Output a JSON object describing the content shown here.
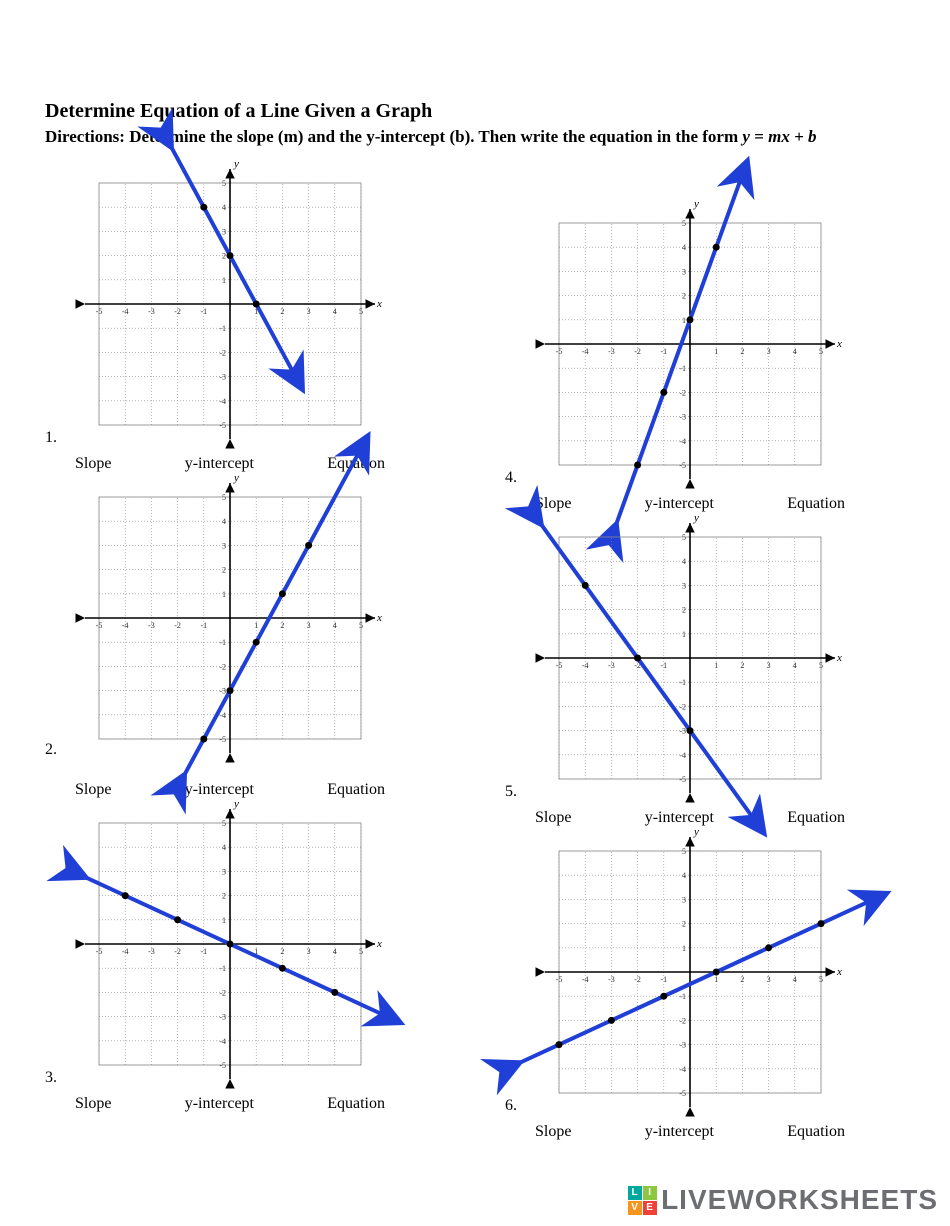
{
  "title": "Determine Equation of a Line Given a Graph",
  "directions_prefix": "Directions: Determine the slope (m) and the y-intercept (b). Then write the equation in the form ",
  "directions_eq": "y = mx + b",
  "label_slope": "Slope",
  "label_yint": "y-intercept",
  "label_eq": "Equation",
  "watermark": "LIVEWORKSHEETS",
  "grid": {
    "xlim": [
      -5,
      5
    ],
    "ylim": [
      -5,
      5
    ],
    "tick_step": 1,
    "grid_color": "#888888",
    "axis_color": "#000000",
    "line_color": "#1f3fd6",
    "arrow_color": "#1f3fd6",
    "background": "#ffffff",
    "axis_label_x": "x",
    "axis_label_y": "y"
  },
  "problems": [
    {
      "num": "1.",
      "points": [
        [
          -1,
          4
        ],
        [
          0,
          2
        ],
        [
          1,
          0
        ]
      ],
      "line": {
        "x1": -2.5,
        "y1": 7,
        "x2": 2.5,
        "y2": -3
      }
    },
    {
      "num": "2.",
      "points": [
        [
          -1,
          -5
        ],
        [
          0,
          -3
        ],
        [
          1,
          -1
        ],
        [
          2,
          1
        ],
        [
          3,
          3
        ]
      ],
      "line": {
        "x1": -2,
        "y1": -7,
        "x2": 5,
        "y2": 7
      }
    },
    {
      "num": "3.",
      "points": [
        [
          -4,
          2
        ],
        [
          -2,
          1
        ],
        [
          0,
          0
        ],
        [
          2,
          -1
        ],
        [
          4,
          -2
        ]
      ],
      "line": {
        "x1": -6,
        "y1": 3,
        "x2": 6,
        "y2": -3
      }
    },
    {
      "num": "4.",
      "points": [
        [
          -2,
          -5
        ],
        [
          -1,
          -2
        ],
        [
          0,
          1
        ],
        [
          1,
          4
        ]
      ],
      "line": {
        "x1": -3,
        "y1": -8,
        "x2": 2,
        "y2": 7
      }
    },
    {
      "num": "5.",
      "points": [
        [
          -4,
          3
        ],
        [
          -2,
          0
        ],
        [
          0,
          -3
        ]
      ],
      "line": {
        "x1": -6,
        "y1": 6,
        "x2": 2.5,
        "y2": -6.75
      }
    },
    {
      "num": "6.",
      "points": [
        [
          -5,
          -3
        ],
        [
          -3,
          -2
        ],
        [
          -1,
          -1
        ],
        [
          1,
          0
        ],
        [
          3,
          1
        ],
        [
          5,
          2
        ]
      ],
      "line": {
        "x1": -7,
        "y1": -4,
        "x2": 7,
        "y2": 3
      }
    }
  ]
}
